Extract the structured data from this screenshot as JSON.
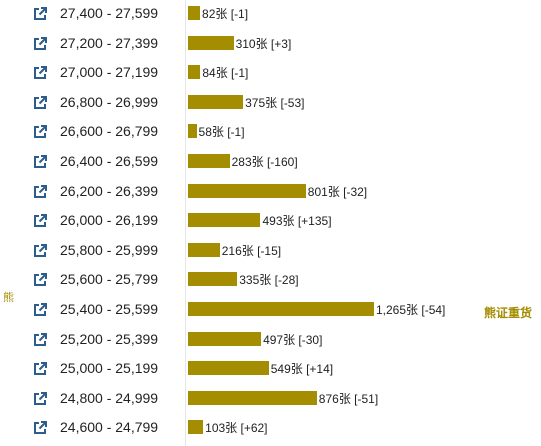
{
  "colors": {
    "bar": "#a48d00",
    "icon": "#2d5d8c",
    "side_label": "#a48d00"
  },
  "side_labels": {
    "left": "熊",
    "right": "熊证重货"
  },
  "chart_data": {
    "type": "bar",
    "orientation": "horizontal",
    "categories": [
      "27,400 - 27,599",
      "27,200 - 27,399",
      "27,000 - 27,199",
      "26,800 - 26,999",
      "26,600 - 26,799",
      "26,400 - 26,599",
      "26,200 - 26,399",
      "26,000 - 26,199",
      "25,800 - 25,999",
      "25,600 - 25,799",
      "25,400 - 25,599",
      "25,200 - 25,399",
      "25,000 - 25,199",
      "24,800 - 24,999",
      "24,600 - 24,799"
    ],
    "values": [
      82,
      310,
      84,
      375,
      58,
      283,
      801,
      493,
      216,
      335,
      1265,
      497,
      549,
      876,
      103
    ],
    "labels": [
      "82张 [-1]",
      "310张 [+3]",
      "84张 [-1]",
      "375张 [-53]",
      "58张 [-1]",
      "283张 [-160]",
      "801张 [-32]",
      "493张 [+135]",
      "216张 [-15]",
      "335张 [-28]",
      "1,265张 [-54]",
      "497张 [-30]",
      "549张 [+14]",
      "876张 [-51]",
      "103张 [+62]"
    ],
    "changes": [
      -1,
      3,
      -1,
      -53,
      -1,
      -160,
      -32,
      135,
      -15,
      -28,
      -54,
      -30,
      14,
      -51,
      62
    ],
    "xlim": [
      0,
      1265
    ],
    "icon": "external-link-icon"
  }
}
